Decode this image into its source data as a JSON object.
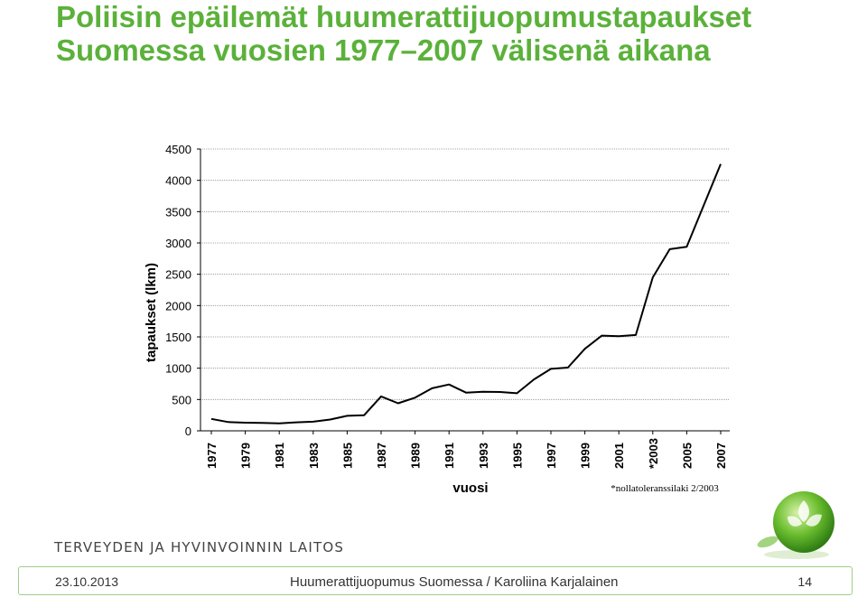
{
  "title": {
    "line1": "Poliisin epäilemät huumerattijuopumustapaukset",
    "line2": "Suomessa vuosien 1977–2007 välisenä aikana"
  },
  "colors": {
    "title": "#5bb13a",
    "line": "#000000",
    "footer_border": "#9fcf88"
  },
  "logo_text": "TERVEYDEN JA HYVINVOINNIN LAITOS",
  "footer": {
    "date": "23.10.2013",
    "text": "Huumerattijuopumus Suomessa / Karoliina Karjalainen",
    "page": "14"
  },
  "chart_data": {
    "type": "line",
    "xlabel": "vuosi",
    "ylabel": "tapaukset (lkm)",
    "ylim": [
      0,
      4500
    ],
    "yticks": [
      0,
      500,
      1000,
      1500,
      2000,
      2500,
      3000,
      3500,
      4000,
      4500
    ],
    "xtick_labels": [
      "1977",
      "1979",
      "1981",
      "1983",
      "1985",
      "1987",
      "1989",
      "1991",
      "1993",
      "1995",
      "1997",
      "1999",
      "2001",
      "*2003",
      "2005",
      "2007"
    ],
    "note": "*nollatoleranssilaki 2/2003",
    "grid": true,
    "x": [
      1977,
      1978,
      1979,
      1980,
      1981,
      1982,
      1983,
      1984,
      1985,
      1986,
      1987,
      1988,
      1989,
      1990,
      1991,
      1992,
      1993,
      1994,
      1995,
      1996,
      1997,
      1998,
      1999,
      2000,
      2001,
      2002,
      2003,
      2004,
      2005,
      2006,
      2007
    ],
    "values": [
      190,
      140,
      130,
      125,
      120,
      135,
      145,
      180,
      240,
      250,
      550,
      440,
      530,
      680,
      740,
      610,
      625,
      620,
      600,
      820,
      990,
      1010,
      1310,
      1520,
      1510,
      1530,
      2450,
      2900,
      2940,
      3600,
      4260
    ]
  }
}
